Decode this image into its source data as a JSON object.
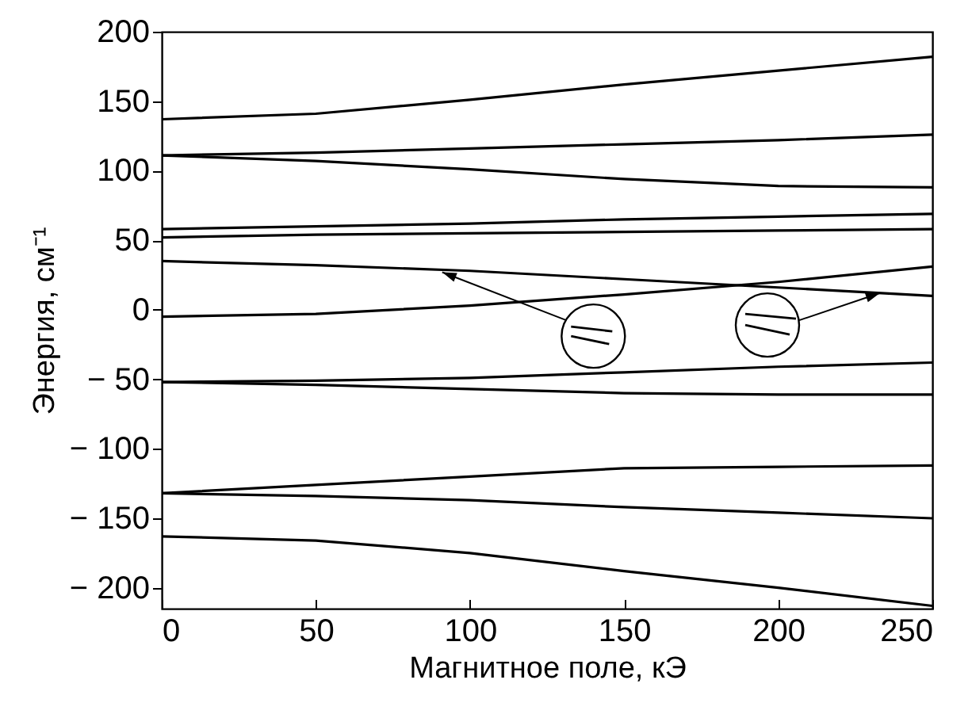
{
  "chart_data": {
    "type": "line",
    "xlabel": "Магнитное поле, кЭ",
    "ylabel": "Энергия, см⁻¹",
    "x": [
      0,
      50,
      100,
      150,
      200,
      250
    ],
    "xlim": [
      0,
      250
    ],
    "xticks": [
      0,
      50,
      100,
      150,
      200,
      250
    ],
    "ylim": [
      -215,
      200
    ],
    "yticks": [
      {
        "value": -200,
        "label": "− 200"
      },
      {
        "value": -150,
        "label": "− 150"
      },
      {
        "value": -100,
        "label": "− 100"
      },
      {
        "value": -50,
        "label": "− 50"
      },
      0,
      50,
      100,
      150,
      200
    ],
    "grid": false,
    "legend": false,
    "marker": "none",
    "line_style": "solid",
    "series": [
      {
        "color": "#000000",
        "values": [
          137,
          141,
          151,
          162,
          172,
          182
        ]
      },
      {
        "color": "#000000",
        "values": [
          111,
          113,
          116,
          119,
          122,
          126
        ]
      },
      {
        "color": "#000000",
        "values": [
          111,
          107,
          101,
          94,
          89,
          88
        ]
      },
      {
        "color": "#000000",
        "values": [
          58,
          60,
          62,
          65,
          67,
          69
        ]
      },
      {
        "color": "#000000",
        "values": [
          52,
          54,
          55,
          56,
          57,
          58
        ]
      },
      {
        "color": "#000000",
        "values": [
          35,
          32,
          28,
          22,
          16,
          10
        ]
      },
      {
        "color": "#000000",
        "values": [
          -5,
          -3,
          3,
          11,
          20,
          31
        ]
      },
      {
        "color": "#000000",
        "values": [
          -52,
          -51,
          -49,
          -45,
          -41,
          -38
        ]
      },
      {
        "color": "#000000",
        "values": [
          -52,
          -54,
          -57,
          -60,
          -61,
          -61
        ]
      },
      {
        "color": "#000000",
        "values": [
          -132,
          -126,
          -120,
          -114,
          -113,
          -112
        ]
      },
      {
        "color": "#000000",
        "values": [
          -132,
          -134,
          -137,
          -142,
          -146,
          -150
        ]
      },
      {
        "color": "#000000",
        "values": [
          -163,
          -166,
          -175,
          -188,
          -200,
          -213
        ]
      }
    ]
  }
}
